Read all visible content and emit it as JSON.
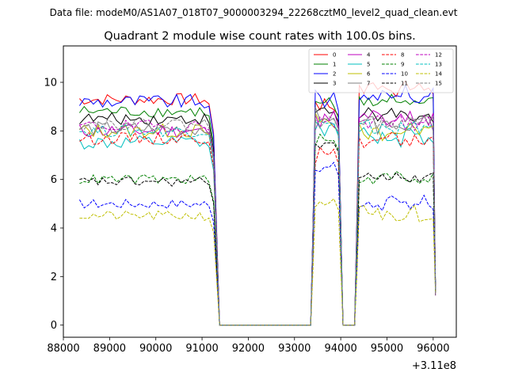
{
  "suptitle": "Data file: modeM0/AS1A07_018T07_9000003294_22268cztM0_level2_quad_clean.evt",
  "chart_data": {
    "type": "line",
    "title": "Quadrant 2 module wise count rates with 100.0s bins.",
    "xlabel": "",
    "ylabel": "",
    "x_offset_label": "+3.11e8",
    "xlim": [
      88000,
      96500
    ],
    "ylim": [
      -0.5,
      11.5
    ],
    "x_ticks": [
      88000,
      89000,
      90000,
      91000,
      92000,
      93000,
      94000,
      95000,
      96000
    ],
    "x_tick_labels": [
      "88000",
      "89000",
      "90000",
      "91000",
      "92000",
      "93000",
      "94000",
      "95000",
      "96000"
    ],
    "y_ticks": [
      0,
      2,
      4,
      6,
      8,
      10
    ],
    "y_tick_labels": [
      "0",
      "2",
      "4",
      "6",
      "8",
      "10"
    ],
    "grid": false,
    "legend_position": "top-right",
    "legend_columns": 4,
    "segments": [
      {
        "x_start": 88350,
        "x_end": 91050
      },
      {
        "x_start": 93450,
        "x_end": 93850
      },
      {
        "x_start": 94400,
        "x_end": 96000
      }
    ],
    "gaps": [
      {
        "x_start": 91380,
        "x_end": 93350
      },
      {
        "x_start": 94050,
        "x_end": 94230
      }
    ],
    "series": [
      {
        "name": "0",
        "color": "#ff0000",
        "dash": "solid",
        "level": 9.3,
        "levels": [
          9.3,
          9.1,
          9.8
        ],
        "min": 0.0,
        "jitter": 0.25
      },
      {
        "name": "1",
        "color": "#008000",
        "dash": "solid",
        "level": 8.8,
        "levels": [
          8.8,
          9.0,
          9.2
        ],
        "min": 0.0,
        "jitter": 0.25
      },
      {
        "name": "2",
        "color": "#0000ff",
        "dash": "solid",
        "level": 9.2,
        "levels": [
          9.2,
          9.3,
          9.5
        ],
        "min": 0.0,
        "jitter": 0.3
      },
      {
        "name": "3",
        "color": "#000000",
        "dash": "solid",
        "level": 8.5,
        "levels": [
          8.5,
          8.8,
          8.6
        ],
        "min": 0.0,
        "jitter": 0.25
      },
      {
        "name": "4",
        "color": "#bf00bf",
        "dash": "solid",
        "level": 8.0,
        "levels": [
          8.0,
          8.6,
          8.5
        ],
        "min": 0.0,
        "jitter": 0.3
      },
      {
        "name": "5",
        "color": "#00bfbf",
        "dash": "solid",
        "level": 7.5,
        "levels": [
          7.5,
          8.2,
          7.8
        ],
        "min": 0.0,
        "jitter": 0.3
      },
      {
        "name": "6",
        "color": "#bfbf00",
        "dash": "solid",
        "level": 8.0,
        "levels": [
          8.0,
          8.4,
          8.0
        ],
        "min": 0.0,
        "jitter": 0.3
      },
      {
        "name": "7",
        "color": "#808080",
        "dash": "solid",
        "level": 8.1,
        "levels": [
          8.1,
          8.5,
          8.3
        ],
        "min": 0.0,
        "jitter": 0.3
      },
      {
        "name": "8",
        "color": "#ff0000",
        "dash": "dashed",
        "level": 7.7,
        "levels": [
          7.7,
          7.0,
          7.6
        ],
        "min": 0.0,
        "jitter": 0.25
      },
      {
        "name": "9",
        "color": "#008000",
        "dash": "dashed",
        "level": 6.0,
        "levels": [
          6.0,
          7.6,
          6.1
        ],
        "min": 0.0,
        "jitter": 0.2
      },
      {
        "name": "10",
        "color": "#0000ff",
        "dash": "dashed",
        "level": 5.0,
        "levels": [
          5.0,
          6.5,
          5.0
        ],
        "min": 0.0,
        "jitter": 0.2
      },
      {
        "name": "11",
        "color": "#000000",
        "dash": "dashed",
        "level": 5.9,
        "levels": [
          5.9,
          7.5,
          6.1
        ],
        "min": 0.0,
        "jitter": 0.2
      },
      {
        "name": "12",
        "color": "#bf00bf",
        "dash": "dashed",
        "level": 8.2,
        "levels": [
          8.2,
          8.4,
          8.3
        ],
        "min": 0.0,
        "jitter": 0.25
      },
      {
        "name": "13",
        "color": "#00bfbf",
        "dash": "dashed",
        "level": 8.0,
        "levels": [
          8.0,
          8.3,
          8.1
        ],
        "min": 0.0,
        "jitter": 0.25
      },
      {
        "name": "14",
        "color": "#bfbf00",
        "dash": "dashed",
        "level": 4.5,
        "levels": [
          4.5,
          5.0,
          4.6
        ],
        "min": 0.0,
        "jitter": 0.2
      },
      {
        "name": "15",
        "color": "#808080",
        "dash": "dashed",
        "level": 8.3,
        "levels": [
          8.3,
          8.5,
          8.4
        ],
        "min": 0.0,
        "jitter": 0.25
      }
    ]
  }
}
